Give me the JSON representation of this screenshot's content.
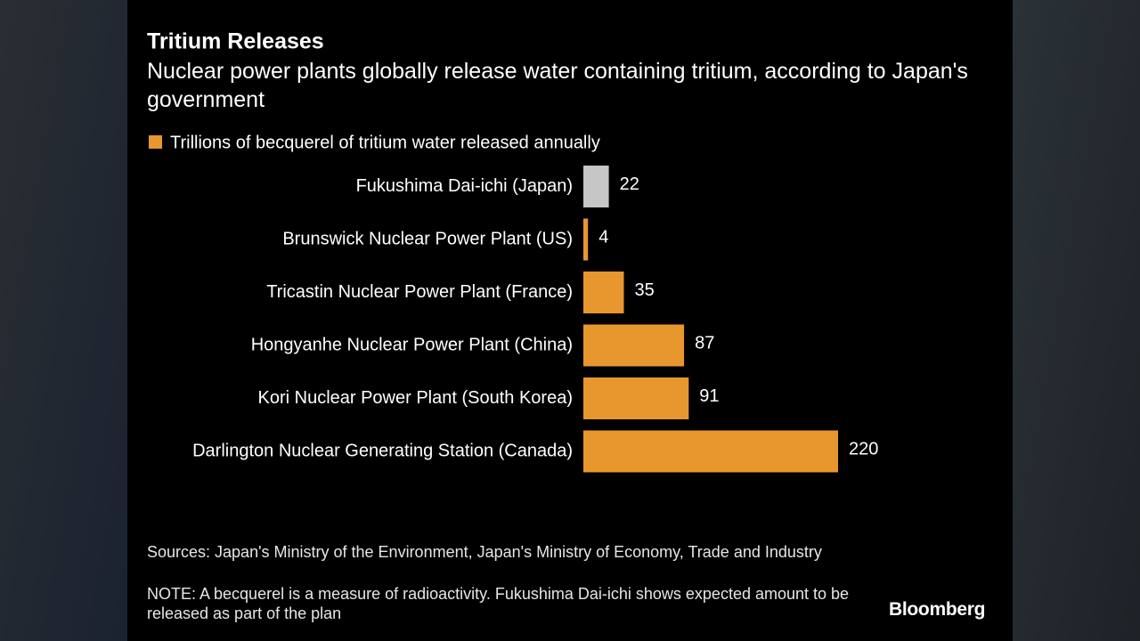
{
  "chart_data": {
    "type": "bar",
    "orientation": "horizontal",
    "title": "Tritium Releases",
    "subtitle": "Nuclear power plants globally release water containing tritium, according to Japan's government",
    "categories": [
      "Fukushima Dai-ichi (Japan)",
      "Brunswick Nuclear Power Plant (US)",
      "Tricastin Nuclear Power Plant (France)",
      "Hongyanhe Nuclear Power Plant (China)",
      "Kori Nuclear Power Plant (South Korea)",
      "Darlington Nuclear Generating Station (Canada)"
    ],
    "series": [
      {
        "name": "Trillions of becquerel of tritium water released annually",
        "color": "#e8962e",
        "values": [
          22,
          4,
          35,
          87,
          91,
          220
        ]
      }
    ],
    "bar_colors": [
      "#c6c6c6",
      "#e8962e",
      "#e8962e",
      "#e8962e",
      "#e8962e",
      "#e8962e"
    ],
    "legend": "top-left",
    "source": "Sources: Japan's Ministry of the Environment, Japan's Ministry of Economy, Trade and Industry",
    "note": "NOTE: A becquerel is a measure of radioactivity. Fukushima Dai-ichi shows expected amount to be released as part of the plan",
    "brand": "Bloomberg"
  }
}
